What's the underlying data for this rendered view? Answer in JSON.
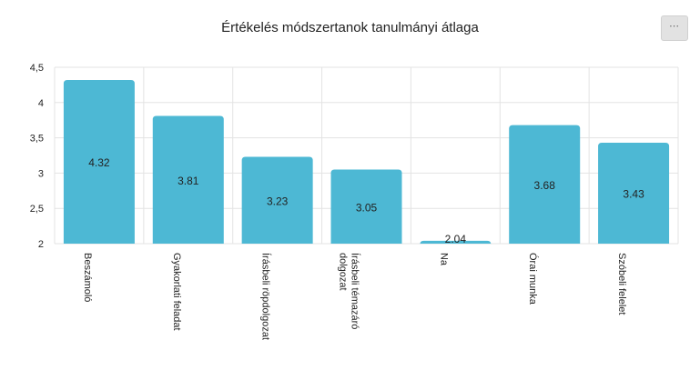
{
  "header": {
    "title": "Értékelés módszertanok tanulmányi átlaga",
    "menu_label": "⋯"
  },
  "colors": {
    "bar": "#4db8d4",
    "grid": "#e3e3e3",
    "text": "#222222"
  },
  "chart_data": {
    "type": "bar",
    "title": "Értékelés módszertanok tanulmányi átlaga",
    "xlabel": "",
    "ylabel": "",
    "categories": [
      "Beszámoló",
      "Gyakorlati feladat",
      "Írásbeli röpdolgozat",
      "Írásbeli témazáró dolgozat",
      "Na",
      "Órai munka",
      "Szóbeli felelet"
    ],
    "category_lines": [
      [
        "Beszámoló"
      ],
      [
        "Gyakorlati feladat"
      ],
      [
        "Írásbeli röpdolgozat"
      ],
      [
        "Írásbeli témazáró",
        "dolgozat"
      ],
      [
        "Na"
      ],
      [
        "Órai munka"
      ],
      [
        "Szóbeli felelet"
      ]
    ],
    "values": [
      4.32,
      3.81,
      3.23,
      3.05,
      2.04,
      3.68,
      3.43
    ],
    "value_labels": [
      "4.32",
      "3.81",
      "3.23",
      "3.05",
      "2.04",
      "3.68",
      "3.43"
    ],
    "ylim": [
      2,
      4.5
    ],
    "yticks": [
      2,
      2.5,
      3,
      3.5,
      4,
      4.5
    ],
    "ytick_labels": [
      "2",
      "2,5",
      "3",
      "3,5",
      "4",
      "4,5"
    ],
    "grid": true,
    "legend": "none"
  }
}
